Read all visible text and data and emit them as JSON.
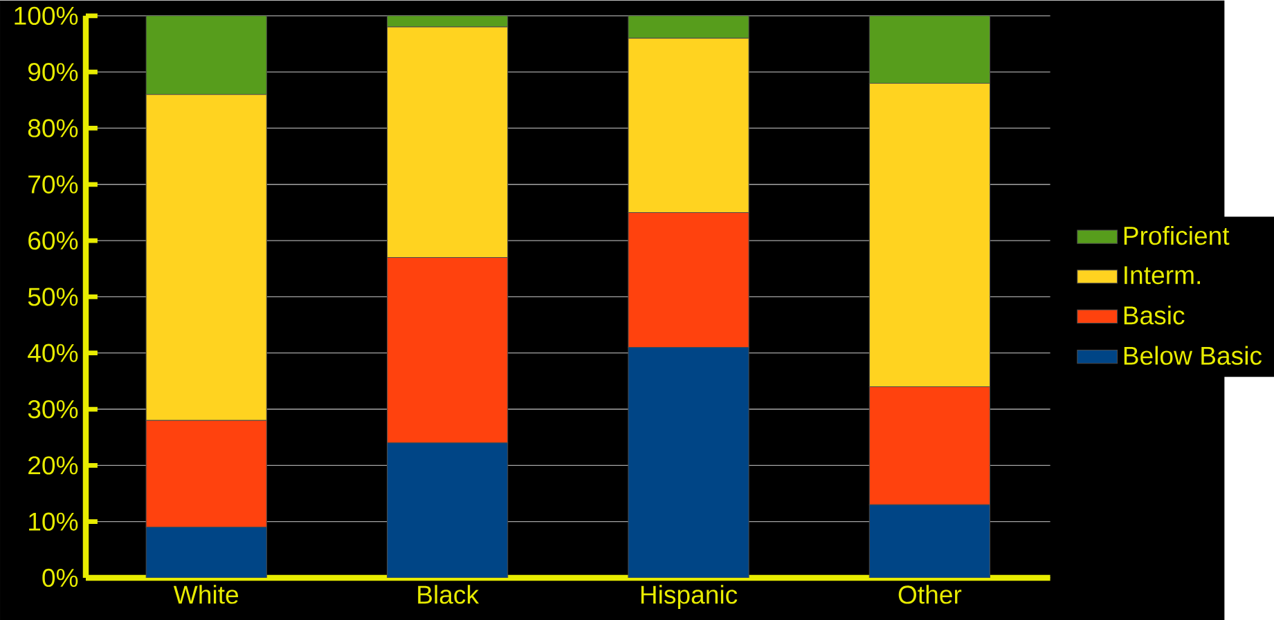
{
  "chart_data": {
    "type": "bar",
    "stacked": true,
    "categories": [
      "White",
      "Black",
      "Hispanic",
      "Other"
    ],
    "series": [
      {
        "name": "Below Basic",
        "color": "#004586",
        "values": [
          9,
          24,
          41,
          13
        ]
      },
      {
        "name": "Basic",
        "color": "#ff420e",
        "values": [
          19,
          33,
          24,
          21
        ]
      },
      {
        "name": "Interm.",
        "color": "#ffd320",
        "values": [
          58,
          41,
          31,
          54
        ]
      },
      {
        "name": "Proficient",
        "color": "#579d1c",
        "values": [
          14,
          2,
          4,
          12
        ]
      }
    ],
    "ylim": [
      0,
      100
    ],
    "yticks": [
      {
        "value": 0,
        "label": "0%"
      },
      {
        "value": 10,
        "label": "10%"
      },
      {
        "value": 20,
        "label": "20%"
      },
      {
        "value": 30,
        "label": "30%"
      },
      {
        "value": 40,
        "label": "40%"
      },
      {
        "value": 50,
        "label": "50%"
      },
      {
        "value": 60,
        "label": "60%"
      },
      {
        "value": 70,
        "label": "70%"
      },
      {
        "value": 80,
        "label": "80%"
      },
      {
        "value": 90,
        "label": "90%"
      },
      {
        "value": 100,
        "label": "100%"
      }
    ],
    "grid": "y",
    "legend": "right"
  }
}
